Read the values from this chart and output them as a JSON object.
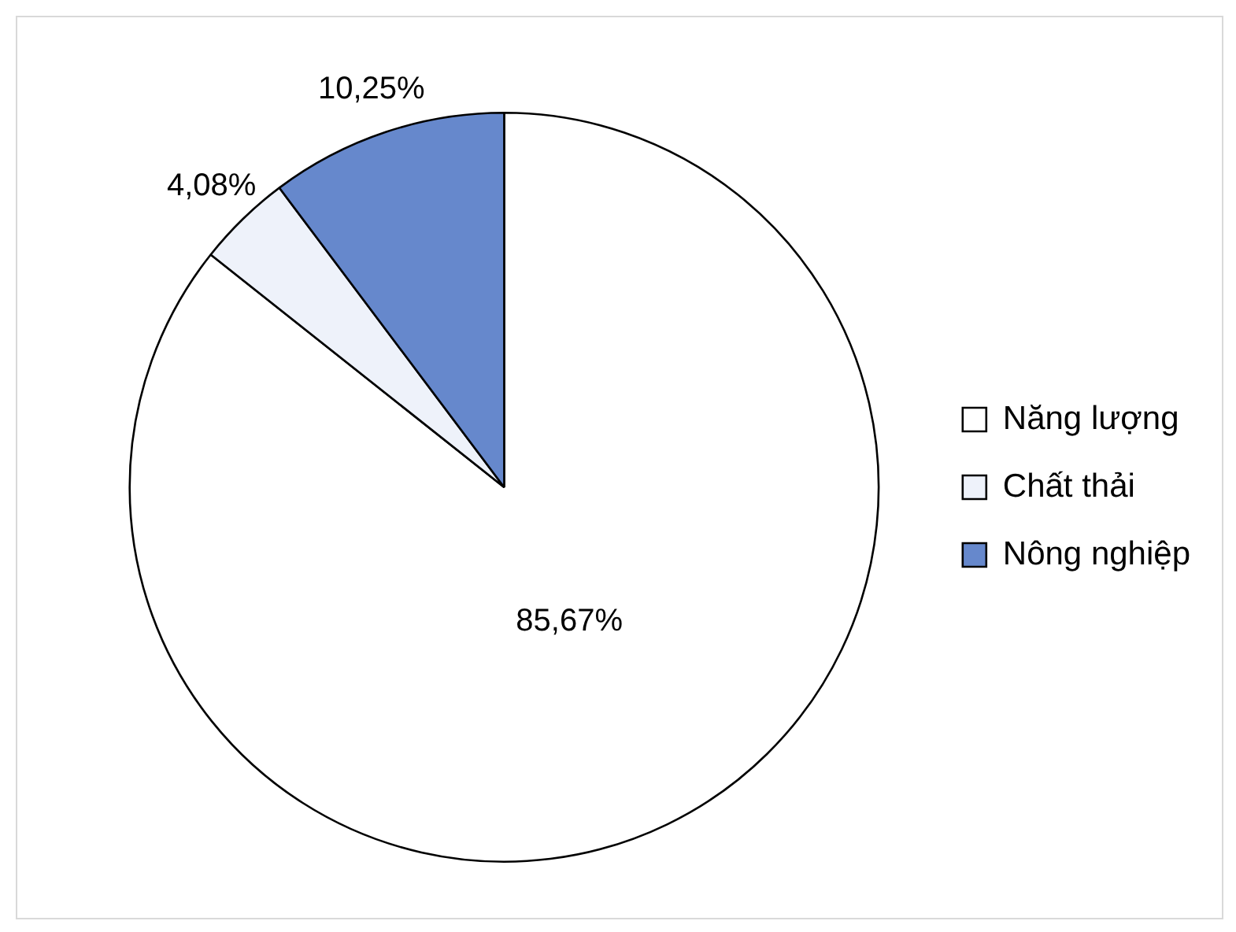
{
  "chart_data": {
    "type": "pie",
    "categories": [
      "Năng lượng",
      "Chất thải",
      "Nông nghiệp"
    ],
    "values": [
      85.67,
      4.08,
      10.25
    ],
    "colors": [
      "#ffffff",
      "#eef2fa",
      "#6688cc"
    ],
    "value_labels": [
      "85,67%",
      "4,08%",
      "10,25%"
    ],
    "legend": "right"
  }
}
